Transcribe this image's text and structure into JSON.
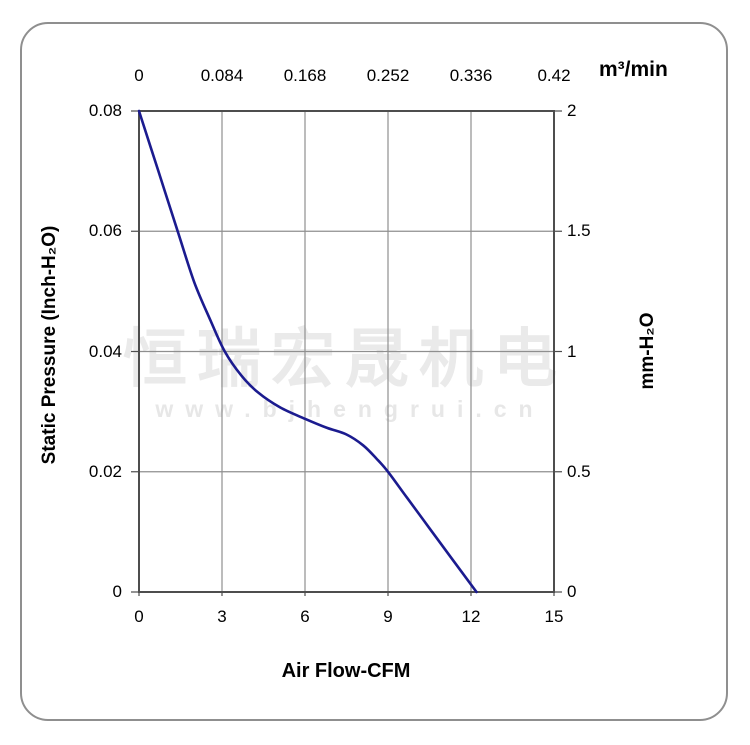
{
  "page": {
    "background_color": "#ffffff",
    "border_color": "#8f8f8f"
  },
  "watermark": {
    "line1": "恒瑞宏晟机电",
    "line2": "www.bjhengrui.cn",
    "color": "#eaeaea"
  },
  "chart_data": {
    "type": "line",
    "grid": true,
    "plot_frame_color": "#4d4d4d",
    "grid_color": "#8f8f8f",
    "axes": {
      "x_bottom": {
        "label": "Air Flow-CFM",
        "ticks": [
          "0",
          "3",
          "6",
          "9",
          "12",
          "15"
        ],
        "values": [
          0,
          3,
          6,
          9,
          12,
          15
        ],
        "range": [
          0,
          15
        ]
      },
      "x_top": {
        "label": "m³/min",
        "ticks": [
          "0",
          "0.084",
          "0.168",
          "0.252",
          "0.336",
          "0.42"
        ],
        "values": [
          0,
          0.084,
          0.168,
          0.252,
          0.336,
          0.42
        ],
        "range": [
          0,
          0.42
        ]
      },
      "y_left": {
        "label": "Static Pressure (Inch-H₂O)",
        "ticks": [
          "0.08",
          "0.06",
          "0.04",
          "0.02",
          "0"
        ],
        "values": [
          0.08,
          0.06,
          0.04,
          0.02,
          0
        ],
        "range": [
          0,
          0.08
        ]
      },
      "y_right": {
        "label": "mm-H₂O",
        "ticks": [
          "2",
          "1.5",
          "1",
          "0.5",
          "0"
        ],
        "values": [
          2,
          1.5,
          1,
          0.5,
          0
        ],
        "range": [
          0,
          2
        ]
      }
    },
    "series": [
      {
        "name": "static-pressure-vs-airflow-curve",
        "color": "#1b1b8f",
        "points": [
          [
            0,
            0.08
          ],
          [
            0.7,
            0.07
          ],
          [
            1.4,
            0.06
          ],
          [
            2.0,
            0.0515
          ],
          [
            2.6,
            0.045
          ],
          [
            3.1,
            0.04
          ],
          [
            3.7,
            0.036
          ],
          [
            4.3,
            0.0332
          ],
          [
            5.1,
            0.0307
          ],
          [
            6.0,
            0.0288
          ],
          [
            6.8,
            0.0273
          ],
          [
            7.5,
            0.0262
          ],
          [
            8.1,
            0.0244
          ],
          [
            8.6,
            0.0221
          ],
          [
            9.0,
            0.02
          ],
          [
            9.7,
            0.0156
          ],
          [
            10.5,
            0.0106
          ],
          [
            11.3,
            0.0056
          ],
          [
            12.2,
            0
          ]
        ]
      }
    ]
  }
}
